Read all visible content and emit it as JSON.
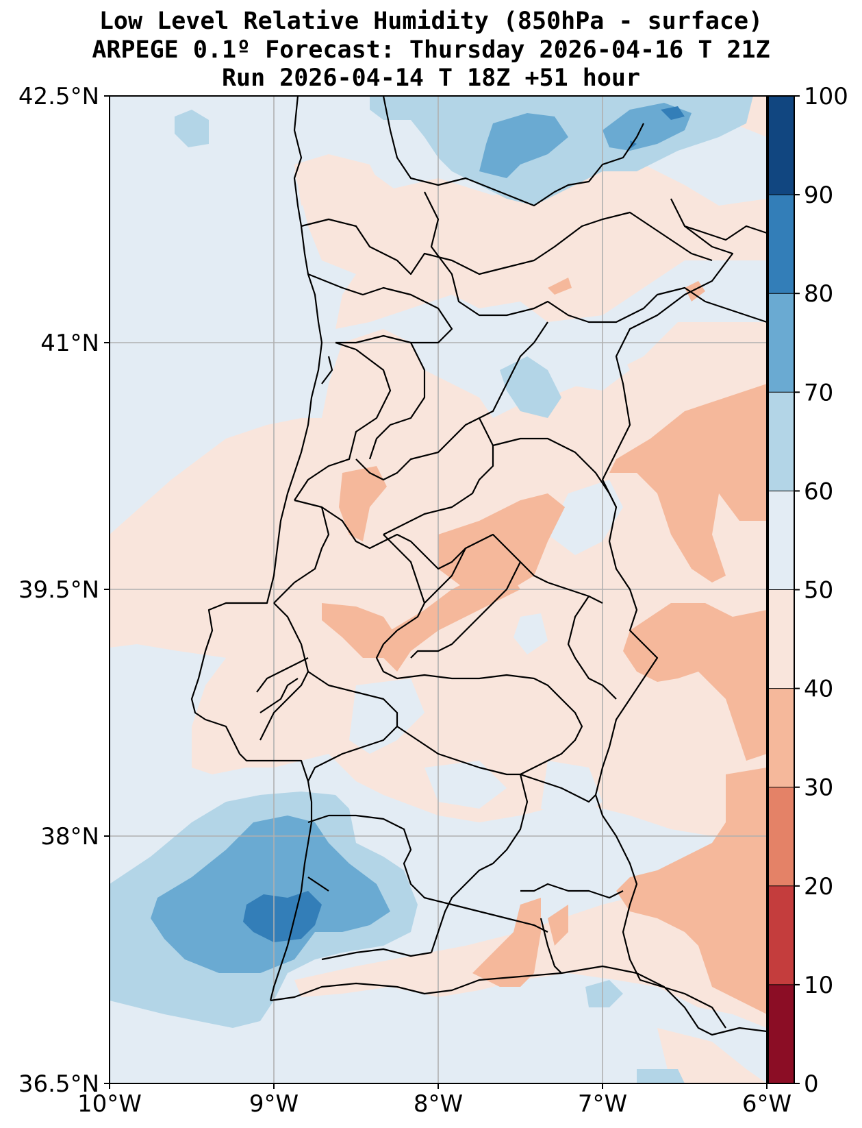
{
  "title": {
    "line1": "Low Level Relative Humidity (850hPa - surface)",
    "line2": "ARPEGE 0.1º Forecast: Thursday 2026-04-16 T 21Z",
    "line3": "Run 2026-04-14 T 18Z +51 hour"
  },
  "map": {
    "lat_labels": [
      "42.5°N",
      "41°N",
      "39.5°N",
      "38°N",
      "36.5°N"
    ],
    "lon_labels": [
      "10°W",
      "9°W",
      "8°W",
      "7°W",
      "6°W"
    ],
    "lat_range": [
      36.5,
      42.5
    ],
    "lon_range": [
      -10,
      -6
    ]
  },
  "colorbar": {
    "labels": [
      "0",
      "10",
      "20",
      "30",
      "40",
      "50",
      "60",
      "70",
      "80",
      "90",
      "100"
    ],
    "levels": [
      {
        "from": 0,
        "to": 10,
        "color": "#8b0d25"
      },
      {
        "from": 10,
        "to": 20,
        "color": "#c43d3d"
      },
      {
        "from": 20,
        "to": 30,
        "color": "#e48267"
      },
      {
        "from": 30,
        "to": 40,
        "color": "#f5b89b"
      },
      {
        "from": 40,
        "to": 50,
        "color": "#f9e5dc"
      },
      {
        "from": 50,
        "to": 60,
        "color": "#e3ecf4"
      },
      {
        "from": 60,
        "to": 70,
        "color": "#b3d5e7"
      },
      {
        "from": 70,
        "to": 80,
        "color": "#6aaad2"
      },
      {
        "from": 80,
        "to": 90,
        "color": "#337eb8"
      },
      {
        "from": 90,
        "to": 100,
        "color": "#114680"
      }
    ]
  }
}
